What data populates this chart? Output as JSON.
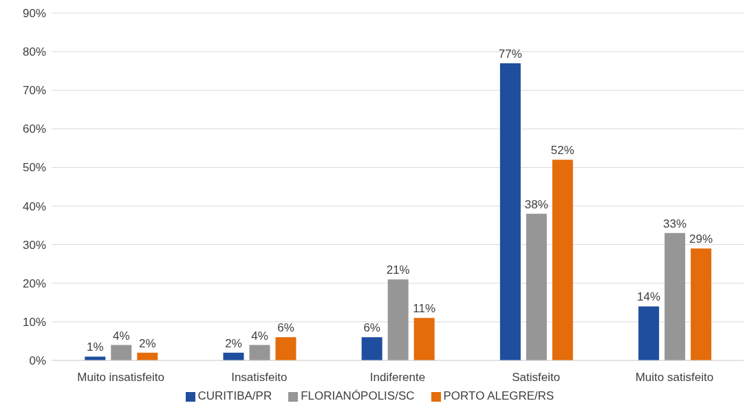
{
  "chart_data": {
    "type": "bar",
    "categories": [
      "Muito insatisfeito",
      "Insatisfeito",
      "Indiferente",
      "Satisfeito",
      "Muito satisfeito"
    ],
    "series": [
      {
        "name": "CURITIBA/PR",
        "color": "#1f4e9f",
        "values": [
          1,
          2,
          6,
          77,
          14
        ],
        "value_labels": [
          "1%",
          "2%",
          "6%",
          "77%",
          "14%"
        ]
      },
      {
        "name": "FLORIANÓPOLIS/SC",
        "color": "#969696",
        "values": [
          4,
          4,
          21,
          38,
          33
        ],
        "value_labels": [
          "4%",
          "4%",
          "21%",
          "38%",
          "33%"
        ]
      },
      {
        "name": "PORTO ALEGRE/RS",
        "color": "#e46c0a",
        "values": [
          2,
          6,
          11,
          52,
          29
        ],
        "value_labels": [
          "2%",
          "6%",
          "11%",
          "52%",
          "29%"
        ]
      }
    ],
    "ylim": [
      0,
      90
    ],
    "yticks": [
      {
        "value": 0,
        "label": "0%"
      },
      {
        "value": 10,
        "label": "10%"
      },
      {
        "value": 20,
        "label": "20%"
      },
      {
        "value": 30,
        "label": "30%"
      },
      {
        "value": 40,
        "label": "40%"
      },
      {
        "value": 50,
        "label": "50%"
      },
      {
        "value": 60,
        "label": "60%"
      },
      {
        "value": 70,
        "label": "70%"
      },
      {
        "value": 80,
        "label": "80%"
      },
      {
        "value": 90,
        "label": "90%"
      }
    ],
    "grid": "y",
    "legend": "bottom"
  }
}
